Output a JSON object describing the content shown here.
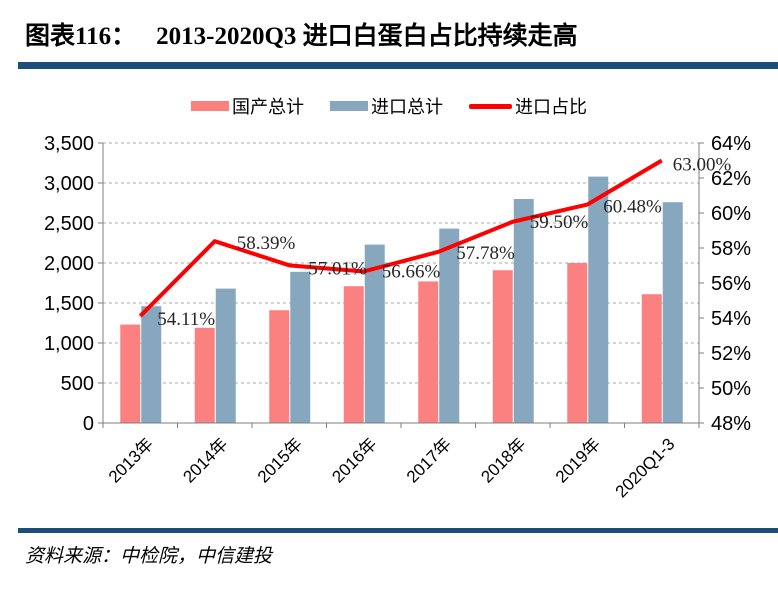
{
  "title": {
    "prefix": "图表116：",
    "text": "2013-2020Q3 进口白蛋白占比持续走高"
  },
  "source": "资料来源：中检院，中信建投",
  "colors": {
    "rule_navy": "#1C4E7C",
    "domestic_bar": "#FB8181",
    "import_bar": "#87A7BF",
    "share_line": "#FF0000",
    "gridline": "#A9A9A9",
    "axis": "#7F7F7F",
    "data_label": "#262626"
  },
  "chart_data": {
    "type": "bar+line combo",
    "categories": [
      "2013年",
      "2014年",
      "2015年",
      "2016年",
      "2017年",
      "2018年",
      "2019年",
      "2020Q1-3"
    ],
    "series": [
      {
        "name": "国产总计",
        "type": "bar",
        "axis": "left",
        "color": "#FB8181",
        "values": [
          1230,
          1190,
          1410,
          1710,
          1770,
          1910,
          2000,
          1610
        ]
      },
      {
        "name": "进口总计",
        "type": "bar",
        "axis": "left",
        "color": "#87A7BF",
        "values": [
          1460,
          1680,
          1890,
          2230,
          2430,
          2800,
          3080,
          2760
        ]
      },
      {
        "name": "进口占比",
        "type": "line",
        "axis": "right",
        "color": "#FF0000",
        "values": [
          54.11,
          58.39,
          57.01,
          56.66,
          57.78,
          59.5,
          60.48,
          63.0
        ],
        "labels": [
          "54.11%",
          "58.39%",
          "57.01%",
          "56.66%",
          "57.78%",
          "59.50%",
          "60.48%",
          "63.00%"
        ]
      }
    ],
    "left_axis": {
      "min": 0,
      "max": 3500,
      "step": 500,
      "tick_labels": [
        "3,500",
        "3,000",
        "2,500",
        "2,000",
        "1,500",
        "1,000",
        "500",
        "0"
      ]
    },
    "right_axis": {
      "min": 48,
      "max": 64,
      "step": 2,
      "tick_labels": [
        "64%",
        "62%",
        "60%",
        "58%",
        "56%",
        "54%",
        "52%",
        "50%",
        "48%"
      ]
    },
    "grid": "horizontal dashed",
    "legend_position": "top center"
  }
}
